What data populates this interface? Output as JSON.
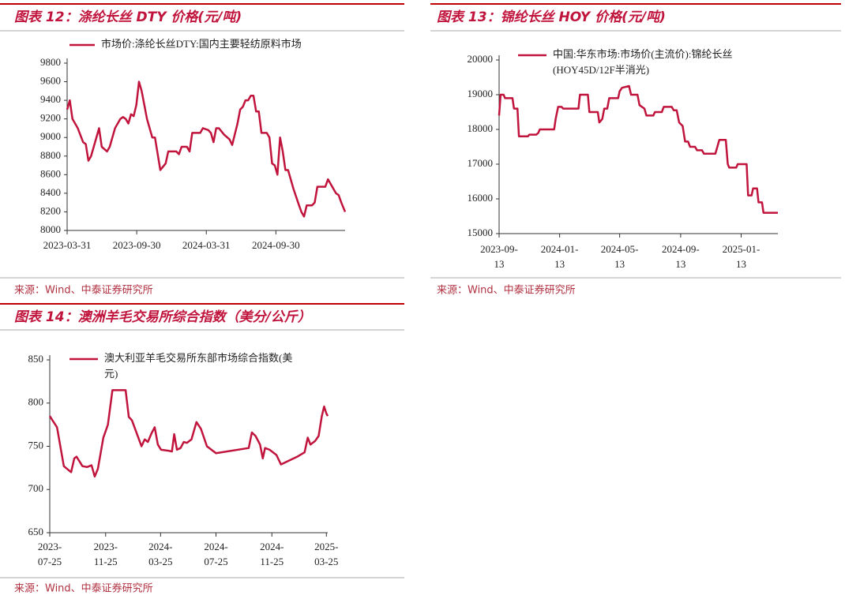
{
  "chart_data": [
    {
      "type": "line",
      "title": "图表 12：涤纶长丝 DTY 价格(元/吨)",
      "source": "来源：Wind、中泰证券研究所",
      "x": [
        "2023-03-31",
        "2023-04-07",
        "2023-04-14",
        "2023-04-28",
        "2023-05-12",
        "2023-05-19",
        "2023-05-26",
        "2023-06-02",
        "2023-06-16",
        "2023-06-23",
        "2023-06-30",
        "2023-07-14",
        "2023-07-21",
        "2023-08-04",
        "2023-08-18",
        "2023-08-25",
        "2023-09-01",
        "2023-09-08",
        "2023-09-15",
        "2023-09-22",
        "2023-09-29",
        "2023-10-06",
        "2023-10-13",
        "2023-10-27",
        "2023-11-10",
        "2023-11-17",
        "2023-12-01",
        "2023-12-15",
        "2023-12-22",
        "2024-01-12",
        "2024-01-19",
        "2024-01-26",
        "2024-02-09",
        "2024-02-16",
        "2024-02-23",
        "2024-03-15",
        "2024-03-22",
        "2024-04-05",
        "2024-04-12",
        "2024-04-19",
        "2024-04-26",
        "2024-05-03",
        "2024-05-17",
        "2024-05-31",
        "2024-06-07",
        "2024-06-21",
        "2024-06-28",
        "2024-07-05",
        "2024-07-12",
        "2024-07-19",
        "2024-07-26",
        "2024-08-02",
        "2024-08-09",
        "2024-08-16",
        "2024-08-23",
        "2024-09-06",
        "2024-09-13",
        "2024-09-20",
        "2024-09-27",
        "2024-10-04",
        "2024-10-11",
        "2024-10-18",
        "2024-10-25",
        "2024-11-01",
        "2024-11-15",
        "2024-11-29",
        "2024-12-06",
        "2024-12-13",
        "2024-12-20",
        "2025-01-03",
        "2025-01-10",
        "2025-01-17",
        "2025-01-31",
        "2025-02-07",
        "2025-02-14",
        "2025-02-21",
        "2025-03-07",
        "2025-03-14",
        "2025-03-21",
        "2025-03-31"
      ],
      "series": [
        {
          "name": "市场价:涤纶长丝DTY:国内主要轻纺原料市场",
          "color": "#c0143c",
          "values": [
            9300,
            9400,
            9200,
            9100,
            8950,
            8930,
            8750,
            8800,
            9000,
            9100,
            8900,
            8850,
            8900,
            9100,
            9200,
            9220,
            9200,
            9150,
            9250,
            9230,
            9350,
            9600,
            9500,
            9200,
            9000,
            9000,
            8650,
            8720,
            8850,
            8850,
            8820,
            8900,
            8900,
            8850,
            9050,
            9050,
            9100,
            9080,
            9050,
            8950,
            9100,
            9100,
            9030,
            8980,
            8920,
            9150,
            9300,
            9330,
            9400,
            9400,
            9450,
            9450,
            9280,
            9280,
            9050,
            9050,
            9000,
            8720,
            8700,
            8600,
            9000,
            8850,
            8650,
            8650,
            8450,
            8280,
            8200,
            8150,
            8270,
            8270,
            8300,
            8470,
            8470,
            8470,
            8550,
            8500,
            8400,
            8380,
            8300,
            8200
          ]
        }
      ],
      "xlim": [
        "2023-03-31",
        "2025-03-31"
      ],
      "xticks": [
        "2023-03-31",
        "2023-09-30",
        "2024-03-31",
        "2024-09-30"
      ],
      "ylim": [
        8000,
        9800
      ],
      "yticks": [
        8000,
        8200,
        8400,
        8600,
        8800,
        9000,
        9200,
        9400,
        9600,
        9800
      ]
    },
    {
      "type": "line",
      "title": "图表 13：锦纶长丝 HOY 价格(元/吨)",
      "source": "来源：Wind、中泰证券研究所",
      "x": [
        "2023-09-13",
        "2023-09-16",
        "2023-09-22",
        "2023-09-25",
        "2023-10-10",
        "2023-10-13",
        "2023-10-20",
        "2023-10-23",
        "2023-11-10",
        "2023-11-13",
        "2023-11-27",
        "2023-12-01",
        "2023-12-04",
        "2024-01-02",
        "2024-01-05",
        "2024-01-10",
        "2024-01-17",
        "2024-01-20",
        "2024-02-20",
        "2024-02-23",
        "2024-03-10",
        "2024-03-13",
        "2024-03-30",
        "2024-04-02",
        "2024-04-08",
        "2024-04-12",
        "2024-04-18",
        "2024-04-22",
        "2024-05-10",
        "2024-05-13",
        "2024-05-18",
        "2024-06-01",
        "2024-06-05",
        "2024-06-18",
        "2024-06-22",
        "2024-07-02",
        "2024-07-06",
        "2024-07-20",
        "2024-07-23",
        "2024-08-06",
        "2024-08-10",
        "2024-08-26",
        "2024-08-30",
        "2024-09-05",
        "2024-09-10",
        "2024-09-17",
        "2024-09-22",
        "2024-09-28",
        "2024-10-02",
        "2024-10-12",
        "2024-10-16",
        "2024-10-26",
        "2024-10-30",
        "2024-11-22",
        "2024-11-26",
        "2024-11-30",
        "2024-12-13",
        "2024-12-17",
        "2024-12-20",
        "2025-01-03",
        "2025-01-06",
        "2025-01-24",
        "2025-01-27",
        "2025-02-03",
        "2025-02-06",
        "2025-02-14",
        "2025-02-17",
        "2025-02-24",
        "2025-02-27",
        "2025-03-28"
      ],
      "series": [
        {
          "name": "中国:华东市场:市场价(主流价):锦纶长丝(HOY45D/12F半消光)",
          "color": "#c0143c",
          "values": [
            18400,
            19000,
            19000,
            18900,
            18900,
            18600,
            18600,
            17800,
            17800,
            17850,
            17850,
            17900,
            18000,
            18000,
            18300,
            18650,
            18650,
            18600,
            18600,
            19000,
            19000,
            18500,
            18500,
            18200,
            18300,
            18600,
            18600,
            18900,
            18900,
            19100,
            19200,
            19250,
            19000,
            19000,
            18700,
            18600,
            18400,
            18400,
            18500,
            18500,
            18650,
            18650,
            18550,
            18550,
            18200,
            18100,
            17650,
            17650,
            17500,
            17500,
            17400,
            17400,
            17300,
            17300,
            17500,
            17700,
            17700,
            17000,
            16900,
            16900,
            17000,
            17000,
            16100,
            16100,
            16300,
            16300,
            15900,
            15900,
            15600,
            15600
          ]
        }
      ],
      "xlim": [
        "2023-09-13",
        "2025-03-28"
      ],
      "xticks": [
        "2023-09-13",
        "2024-01-13",
        "2024-05-13",
        "2024-09-13",
        "2025-01-13"
      ],
      "ylim": [
        15000,
        20000
      ],
      "yticks": [
        15000,
        16000,
        17000,
        18000,
        19000,
        20000
      ]
    },
    {
      "type": "line",
      "title": "图表 14：澳洲羊毛交易所综合指数（美分/公斤）",
      "source": "来源：Wind、中泰证券研究所",
      "x": [
        "2023-07-25",
        "2023-08-10",
        "2023-08-25",
        "2023-09-10",
        "2023-09-17",
        "2023-09-22",
        "2023-10-05",
        "2023-10-15",
        "2023-10-25",
        "2023-11-01",
        "2023-11-08",
        "2023-11-20",
        "2023-11-30",
        "2023-12-10",
        "2023-12-30",
        "2024-01-08",
        "2024-01-15",
        "2024-01-22",
        "2024-02-05",
        "2024-02-12",
        "2024-02-19",
        "2024-02-26",
        "2024-03-05",
        "2024-03-12",
        "2024-03-19",
        "2024-03-26",
        "2024-04-10",
        "2024-04-19",
        "2024-04-24",
        "2024-04-30",
        "2024-05-08",
        "2024-05-15",
        "2024-05-22",
        "2024-06-01",
        "2024-06-12",
        "2024-06-22",
        "2024-07-05",
        "2024-07-15",
        "2024-07-25",
        "2024-10-05",
        "2024-10-12",
        "2024-10-20",
        "2024-10-30",
        "2024-11-05",
        "2024-11-10",
        "2024-11-20",
        "2024-12-05",
        "2024-12-15",
        "2025-01-20",
        "2025-02-05",
        "2025-02-12",
        "2025-02-18",
        "2025-02-28",
        "2025-03-08",
        "2025-03-15",
        "2025-03-20",
        "2025-03-25",
        "2025-03-28"
      ],
      "series": [
        {
          "name": "澳大利亚羊毛交易所东部市场综合指数(美元)",
          "color": "#c0143c",
          "values": [
            785,
            772,
            727,
            720,
            736,
            738,
            727,
            726,
            728,
            715,
            724,
            760,
            775,
            815,
            815,
            815,
            784,
            780,
            760,
            750,
            758,
            755,
            765,
            772,
            752,
            746,
            745,
            744,
            764,
            746,
            748,
            755,
            754,
            758,
            778,
            770,
            750,
            746,
            742,
            748,
            766,
            762,
            752,
            736,
            748,
            746,
            740,
            729,
            738,
            743,
            760,
            752,
            756,
            762,
            785,
            796,
            788,
            785
          ]
        }
      ],
      "xlim": [
        "2023-07-25",
        "2025-03-28"
      ],
      "xticks": [
        "2023-07-25",
        "2023-11-25",
        "2024-03-25",
        "2024-07-25",
        "2024-11-25",
        "2025-03-25"
      ],
      "ylim": [
        650,
        850
      ],
      "yticks": [
        650,
        700,
        750,
        800,
        850
      ]
    }
  ]
}
